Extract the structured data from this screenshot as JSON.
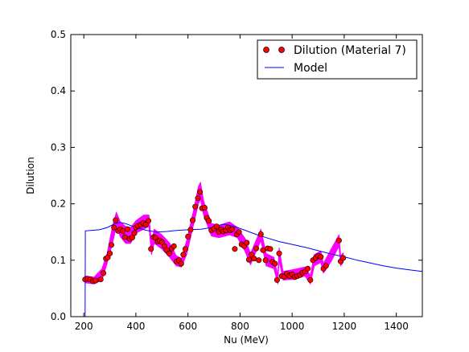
{
  "chart_data": {
    "type": "scatter",
    "xlabel": "Nu (MeV)",
    "ylabel": "Dilution",
    "xlim": [
      150,
      1500
    ],
    "ylim": [
      0.0,
      0.5
    ],
    "x_ticks": [
      "200",
      "400",
      "600",
      "800",
      "1000",
      "1200",
      "1400"
    ],
    "y_ticks": [
      "0.0",
      "0.1",
      "0.2",
      "0.3",
      "0.4",
      "0.5"
    ],
    "grid": false,
    "legend_position": "top-right",
    "colors": {
      "points": "#ff0000",
      "error_band": "#ff00ff",
      "model": "#0000ff"
    },
    "series": [
      {
        "name": "Dilution (Material 7)",
        "kind": "scatter",
        "points": [
          [
            205,
            0.066
          ],
          [
            215,
            0.067
          ],
          [
            225,
            0.066
          ],
          [
            235,
            0.063
          ],
          [
            245,
            0.064
          ],
          [
            265,
            0.066
          ],
          [
            275,
            0.077
          ],
          [
            285,
            0.103
          ],
          [
            292,
            0.105
          ],
          [
            300,
            0.112
          ],
          [
            306,
            0.127
          ],
          [
            316,
            0.158
          ],
          [
            322,
            0.171
          ],
          [
            332,
            0.152
          ],
          [
            340,
            0.155
          ],
          [
            350,
            0.152
          ],
          [
            358,
            0.141
          ],
          [
            368,
            0.155
          ],
          [
            376,
            0.138
          ],
          [
            386,
            0.14
          ],
          [
            394,
            0.148
          ],
          [
            400,
            0.158
          ],
          [
            408,
            0.161
          ],
          [
            418,
            0.163
          ],
          [
            428,
            0.166
          ],
          [
            438,
            0.163
          ],
          [
            448,
            0.17
          ],
          [
            458,
            0.12
          ],
          [
            468,
            0.141
          ],
          [
            476,
            0.14
          ],
          [
            484,
            0.133
          ],
          [
            492,
            0.135
          ],
          [
            500,
            0.132
          ],
          [
            510,
            0.125
          ],
          [
            518,
            0.118
          ],
          [
            528,
            0.112
          ],
          [
            538,
            0.121
          ],
          [
            546,
            0.125
          ],
          [
            556,
            0.098
          ],
          [
            565,
            0.1
          ],
          [
            574,
            0.094
          ],
          [
            582,
            0.11
          ],
          [
            590,
            0.12
          ],
          [
            600,
            0.142
          ],
          [
            610,
            0.154
          ],
          [
            618,
            0.171
          ],
          [
            628,
            0.195
          ],
          [
            638,
            0.21
          ],
          [
            646,
            0.221
          ],
          [
            654,
            0.192
          ],
          [
            664,
            0.193
          ],
          [
            672,
            0.175
          ],
          [
            680,
            0.17
          ],
          [
            690,
            0.153
          ],
          [
            700,
            0.156
          ],
          [
            710,
            0.16
          ],
          [
            718,
            0.15
          ],
          [
            728,
            0.155
          ],
          [
            736,
            0.151
          ],
          [
            746,
            0.153
          ],
          [
            754,
            0.158
          ],
          [
            762,
            0.153
          ],
          [
            770,
            0.155
          ],
          [
            780,
            0.12
          ],
          [
            788,
            0.146
          ],
          [
            796,
            0.15
          ],
          [
            806,
            0.128
          ],
          [
            816,
            0.125
          ],
          [
            826,
            0.131
          ],
          [
            834,
            0.101
          ],
          [
            844,
            0.11
          ],
          [
            854,
            0.103
          ],
          [
            862,
            0.121
          ],
          [
            872,
            0.1
          ],
          [
            880,
            0.146
          ],
          [
            888,
            0.118
          ],
          [
            898,
            0.1
          ],
          [
            906,
            0.121
          ],
          [
            916,
            0.12
          ],
          [
            924,
            0.097
          ],
          [
            934,
            0.094
          ],
          [
            942,
            0.065
          ],
          [
            950,
            0.112
          ],
          [
            960,
            0.072
          ],
          [
            970,
            0.071
          ],
          [
            980,
            0.076
          ],
          [
            990,
            0.072
          ],
          [
            1000,
            0.075
          ],
          [
            1010,
            0.07
          ],
          [
            1020,
            0.072
          ],
          [
            1030,
            0.074
          ],
          [
            1040,
            0.078
          ],
          [
            1050,
            0.08
          ],
          [
            1060,
            0.085
          ],
          [
            1070,
            0.065
          ],
          [
            1080,
            0.1
          ],
          [
            1090,
            0.104
          ],
          [
            1100,
            0.108
          ],
          [
            1110,
            0.106
          ],
          [
            1120,
            0.085
          ],
          [
            1130,
            0.09
          ],
          [
            1180,
            0.135
          ],
          [
            1186,
            0.098
          ],
          [
            1196,
            0.104
          ]
        ]
      },
      {
        "name": "Model",
        "kind": "line",
        "points": [
          [
            205,
            0.0
          ],
          [
            206,
            0.152
          ],
          [
            230,
            0.153
          ],
          [
            260,
            0.154
          ],
          [
            290,
            0.158
          ],
          [
            320,
            0.165
          ],
          [
            340,
            0.167
          ],
          [
            360,
            0.165
          ],
          [
            400,
            0.158
          ],
          [
            440,
            0.153
          ],
          [
            480,
            0.15
          ],
          [
            520,
            0.151
          ],
          [
            560,
            0.153
          ],
          [
            600,
            0.154
          ],
          [
            650,
            0.155
          ],
          [
            690,
            0.158
          ],
          [
            720,
            0.162
          ],
          [
            740,
            0.164
          ],
          [
            760,
            0.162
          ],
          [
            790,
            0.158
          ],
          [
            820,
            0.153
          ],
          [
            860,
            0.146
          ],
          [
            900,
            0.14
          ],
          [
            950,
            0.133
          ],
          [
            1000,
            0.128
          ],
          [
            1050,
            0.123
          ],
          [
            1100,
            0.117
          ],
          [
            1150,
            0.111
          ],
          [
            1200,
            0.106
          ],
          [
            1250,
            0.1
          ],
          [
            1300,
            0.095
          ],
          [
            1350,
            0.09
          ],
          [
            1400,
            0.086
          ],
          [
            1450,
            0.083
          ],
          [
            1500,
            0.08
          ]
        ]
      }
    ],
    "error_band": {
      "points": [
        [
          205,
          0.06,
          0.072
        ],
        [
          240,
          0.058,
          0.07
        ],
        [
          270,
          0.065,
          0.085
        ],
        [
          290,
          0.095,
          0.113
        ],
        [
          310,
          0.13,
          0.16
        ],
        [
          325,
          0.16,
          0.185
        ],
        [
          340,
          0.142,
          0.168
        ],
        [
          360,
          0.13,
          0.16
        ],
        [
          380,
          0.13,
          0.158
        ],
        [
          400,
          0.148,
          0.17
        ],
        [
          430,
          0.155,
          0.18
        ],
        [
          450,
          0.16,
          0.18
        ],
        [
          460,
          0.11,
          0.13
        ],
        [
          470,
          0.13,
          0.155
        ],
        [
          500,
          0.12,
          0.145
        ],
        [
          530,
          0.105,
          0.13
        ],
        [
          555,
          0.09,
          0.108
        ],
        [
          575,
          0.088,
          0.103
        ],
        [
          595,
          0.11,
          0.135
        ],
        [
          620,
          0.16,
          0.185
        ],
        [
          640,
          0.2,
          0.23
        ],
        [
          648,
          0.208,
          0.238
        ],
        [
          660,
          0.18,
          0.205
        ],
        [
          690,
          0.143,
          0.165
        ],
        [
          720,
          0.14,
          0.162
        ],
        [
          760,
          0.145,
          0.168
        ],
        [
          790,
          0.14,
          0.158
        ],
        [
          820,
          0.115,
          0.138
        ],
        [
          840,
          0.092,
          0.112
        ],
        [
          880,
          0.135,
          0.155
        ],
        [
          900,
          0.09,
          0.112
        ],
        [
          930,
          0.085,
          0.105
        ],
        [
          945,
          0.058,
          0.072
        ],
        [
          950,
          0.1,
          0.122
        ],
        [
          965,
          0.065,
          0.08
        ],
        [
          1000,
          0.066,
          0.083
        ],
        [
          1050,
          0.072,
          0.088
        ],
        [
          1070,
          0.058,
          0.073
        ],
        [
          1085,
          0.09,
          0.11
        ],
        [
          1110,
          0.096,
          0.116
        ],
        [
          1120,
          0.077,
          0.094
        ],
        [
          1150,
          0.098,
          0.12
        ],
        [
          1180,
          0.125,
          0.145
        ],
        [
          1186,
          0.09,
          0.108
        ],
        [
          1196,
          0.096,
          0.113
        ]
      ]
    }
  }
}
